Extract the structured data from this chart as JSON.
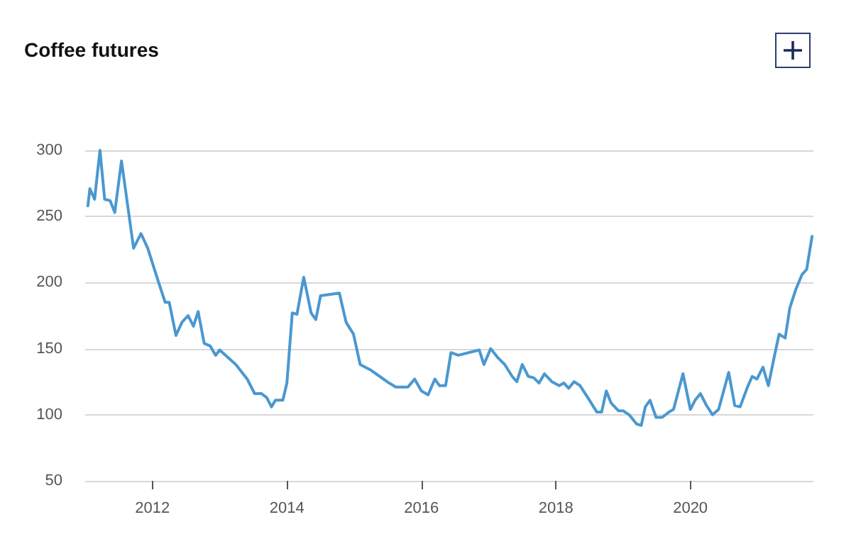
{
  "chart_data": {
    "type": "line",
    "title": "Coffee futures",
    "x": [
      2011.04,
      2011.07,
      2011.14,
      2011.22,
      2011.29,
      2011.37,
      2011.44,
      2011.54,
      2011.72,
      2011.83,
      2011.93,
      2012.08,
      2012.19,
      2012.25,
      2012.35,
      2012.44,
      2012.53,
      2012.61,
      2012.68,
      2012.77,
      2012.86,
      2012.94,
      2013.0,
      2013.24,
      2013.41,
      2013.52,
      2013.62,
      2013.7,
      2013.77,
      2013.83,
      2013.94,
      2014.0,
      2014.08,
      2014.15,
      2014.25,
      2014.36,
      2014.43,
      2014.5,
      2014.78,
      2014.88,
      2014.99,
      2015.09,
      2015.24,
      2015.38,
      2015.52,
      2015.62,
      2015.8,
      2015.9,
      2016.0,
      2016.1,
      2016.2,
      2016.27,
      2016.36,
      2016.44,
      2016.55,
      2016.86,
      2016.93,
      2017.03,
      2017.14,
      2017.24,
      2017.35,
      2017.42,
      2017.5,
      2017.59,
      2017.67,
      2017.75,
      2017.83,
      2017.94,
      2018.05,
      2018.12,
      2018.19,
      2018.27,
      2018.36,
      2018.5,
      2018.61,
      2018.68,
      2018.75,
      2018.82,
      2018.93,
      2019.0,
      2019.09,
      2019.2,
      2019.27,
      2019.33,
      2019.4,
      2019.49,
      2019.58,
      2019.68,
      2019.75,
      2019.89,
      2020.0,
      2020.07,
      2020.15,
      2020.24,
      2020.33,
      2020.42,
      2020.57,
      2020.66,
      2020.74,
      2020.85,
      2020.92,
      2020.99,
      2021.08,
      2021.16,
      2021.24,
      2021.32,
      2021.41,
      2021.48,
      2021.57,
      2021.66,
      2021.73,
      2021.81
    ],
    "series": [
      {
        "color": "#4a98d0",
        "values": [
          258,
          271,
          263,
          300,
          263,
          262,
          253,
          292,
          226,
          237,
          226,
          202,
          185,
          185,
          160,
          170,
          175,
          167,
          178,
          154,
          152,
          145,
          149,
          138,
          127,
          116,
          116,
          113,
          106,
          111,
          111,
          124,
          177,
          176,
          204,
          177,
          172,
          190,
          192,
          170,
          161,
          138,
          134,
          129,
          124,
          121,
          121,
          127,
          118,
          115,
          127,
          122,
          122,
          147,
          145,
          149,
          138,
          150,
          143,
          138,
          129,
          125,
          138,
          129,
          128,
          124,
          131,
          125,
          122,
          124,
          120,
          125,
          122,
          111,
          102,
          102,
          118,
          109,
          103,
          103,
          100,
          93,
          92,
          106,
          111,
          98,
          98,
          102,
          104,
          131,
          104,
          111,
          116,
          107,
          100,
          104,
          132,
          107,
          106,
          121,
          129,
          127,
          136,
          122,
          142,
          161,
          158,
          181,
          195,
          206,
          210,
          235
        ]
      }
    ],
    "xlim": [
      2011,
      2021.83
    ],
    "xticks": [
      2012,
      2014,
      2016,
      2018,
      2020
    ],
    "ylim": [
      50,
      300
    ],
    "yticks": [
      50,
      100,
      150,
      200,
      250,
      300
    ],
    "grid": "y",
    "marker": "none",
    "line_style": "solid"
  }
}
